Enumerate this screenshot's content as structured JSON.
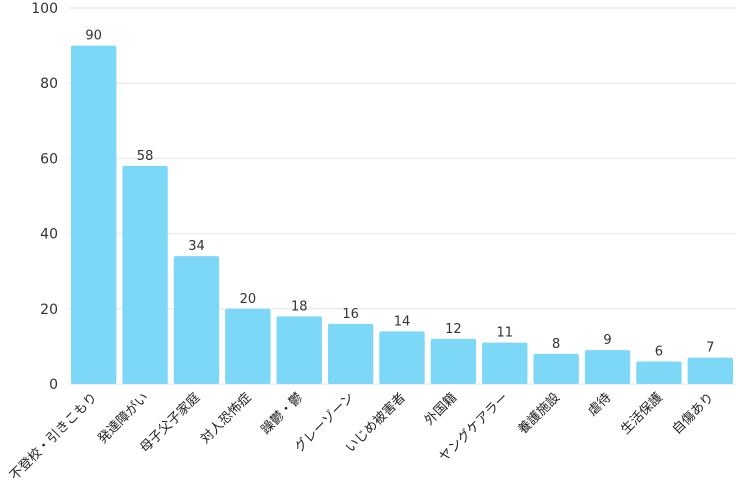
{
  "chart_data": {
    "type": "bar",
    "categories": [
      "不登校・引きこもり",
      "発達障がい",
      "母子父子家庭",
      "対人恐怖症",
      "躁鬱・鬱",
      "グレーゾーン",
      "いじめ被害者",
      "外国籍",
      "ヤングケアラー",
      "養護施設",
      "虐待",
      "生活保護",
      "自傷あり"
    ],
    "values": [
      90,
      58,
      34,
      20,
      18,
      16,
      14,
      12,
      11,
      8,
      9,
      6,
      7
    ],
    "ylim": [
      0,
      100
    ],
    "yticks": [
      0,
      20,
      40,
      60,
      80,
      100
    ],
    "grid": true,
    "bar_color": "#7dd8f8",
    "title": "",
    "xlabel": "",
    "ylabel": ""
  }
}
